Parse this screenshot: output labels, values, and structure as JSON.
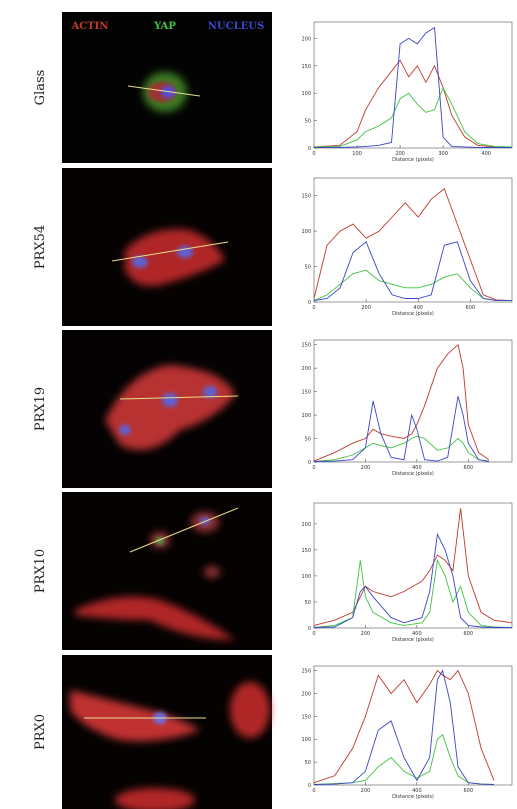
{
  "chart_data": [
    {
      "type": "line",
      "label": "Glass",
      "xlabel": "Distance (pixels)",
      "x": [
        0,
        60,
        100,
        120,
        150,
        180,
        200,
        220,
        240,
        260,
        280,
        300,
        320,
        350,
        380,
        420,
        460
      ],
      "xlim": [
        0,
        460
      ],
      "xticks": [
        0,
        100,
        200,
        300,
        400
      ],
      "ylim": [
        0,
        230
      ],
      "yticks": [
        0,
        50,
        100,
        150,
        200
      ],
      "series": [
        {
          "name": "ACTIN",
          "color": "#c0392b",
          "values": [
            2,
            5,
            30,
            70,
            110,
            140,
            160,
            130,
            150,
            120,
            150,
            110,
            60,
            20,
            5,
            2,
            2
          ]
        },
        {
          "name": "YAP",
          "color": "#3ec43e",
          "values": [
            2,
            3,
            15,
            30,
            40,
            55,
            90,
            100,
            80,
            65,
            70,
            110,
            80,
            30,
            8,
            3,
            2
          ]
        },
        {
          "name": "NUCLEUS",
          "color": "#3a46c8",
          "values": [
            1,
            1,
            2,
            3,
            5,
            10,
            190,
            200,
            190,
            210,
            220,
            20,
            3,
            2,
            1,
            1,
            1
          ]
        }
      ]
    },
    {
      "type": "line",
      "label": "PRX54",
      "xlabel": "Distance (pixels)",
      "x": [
        0,
        50,
        100,
        150,
        200,
        250,
        300,
        350,
        400,
        450,
        500,
        550,
        600,
        650,
        700,
        760
      ],
      "xlim": [
        0,
        760
      ],
      "xticks": [
        0,
        200,
        400,
        600
      ],
      "ylim": [
        0,
        175
      ],
      "yticks": [
        0,
        50,
        100,
        150
      ],
      "series": [
        {
          "color": "#c0392b",
          "values": [
            5,
            80,
            100,
            110,
            90,
            100,
            120,
            140,
            120,
            145,
            160,
            110,
            60,
            10,
            3,
            2
          ]
        },
        {
          "color": "#3ec43e",
          "values": [
            2,
            10,
            25,
            40,
            45,
            30,
            25,
            20,
            20,
            25,
            35,
            40,
            20,
            5,
            2,
            2
          ]
        },
        {
          "color": "#3a46c8",
          "values": [
            2,
            5,
            20,
            70,
            85,
            40,
            10,
            5,
            5,
            10,
            80,
            85,
            30,
            5,
            2,
            2
          ]
        }
      ]
    },
    {
      "type": "line",
      "label": "PRX19",
      "xlabel": "Distance (pixels)",
      "x": [
        0,
        80,
        150,
        200,
        230,
        260,
        300,
        350,
        380,
        400,
        430,
        480,
        520,
        560,
        580,
        600,
        640,
        680
      ],
      "xlim": [
        0,
        770
      ],
      "xticks": [
        0,
        200,
        400,
        600
      ],
      "ylim": [
        0,
        260
      ],
      "yticks": [
        0,
        50,
        100,
        150,
        200,
        250
      ],
      "series": [
        {
          "color": "#c0392b",
          "values": [
            2,
            20,
            40,
            50,
            70,
            60,
            55,
            50,
            60,
            80,
            120,
            200,
            230,
            250,
            200,
            80,
            20,
            5
          ]
        },
        {
          "color": "#3ec43e",
          "values": [
            1,
            5,
            15,
            30,
            40,
            35,
            30,
            40,
            50,
            55,
            50,
            25,
            30,
            50,
            40,
            20,
            5,
            2
          ]
        },
        {
          "color": "#3a46c8",
          "values": [
            1,
            2,
            5,
            30,
            130,
            60,
            10,
            5,
            100,
            70,
            5,
            2,
            10,
            140,
            100,
            40,
            5,
            1
          ]
        }
      ]
    },
    {
      "type": "line",
      "label": "PRX10",
      "xlabel": "Distance (pixels)",
      "x": [
        0,
        80,
        150,
        180,
        200,
        230,
        300,
        350,
        420,
        450,
        480,
        510,
        540,
        570,
        600,
        650,
        700,
        770
      ],
      "xlim": [
        0,
        770
      ],
      "xticks": [
        0,
        200,
        400,
        600
      ],
      "ylim": [
        0,
        240
      ],
      "yticks": [
        0,
        50,
        100,
        150,
        200
      ],
      "series": [
        {
          "color": "#c0392b",
          "values": [
            5,
            15,
            30,
            60,
            80,
            70,
            60,
            70,
            90,
            110,
            140,
            130,
            110,
            230,
            100,
            30,
            15,
            10
          ]
        },
        {
          "color": "#3ec43e",
          "values": [
            1,
            5,
            20,
            130,
            60,
            30,
            10,
            5,
            10,
            30,
            130,
            100,
            50,
            80,
            30,
            5,
            2,
            1
          ]
        },
        {
          "color": "#3a46c8",
          "values": [
            1,
            2,
            20,
            70,
            80,
            60,
            20,
            10,
            20,
            70,
            180,
            150,
            100,
            20,
            5,
            2,
            1,
            1
          ]
        }
      ]
    },
    {
      "type": "line",
      "label": "PRX0",
      "xlabel": "Distance (pixels)",
      "x": [
        0,
        80,
        150,
        200,
        250,
        300,
        350,
        400,
        450,
        480,
        500,
        530,
        560,
        600,
        650,
        700
      ],
      "xlim": [
        0,
        770
      ],
      "xticks": [
        0,
        200,
        400,
        600
      ],
      "ylim": [
        0,
        260
      ],
      "yticks": [
        0,
        50,
        100,
        150,
        200,
        250
      ],
      "series": [
        {
          "color": "#c0392b",
          "values": [
            5,
            20,
            80,
            150,
            240,
            200,
            230,
            180,
            220,
            250,
            240,
            230,
            250,
            200,
            80,
            10
          ]
        },
        {
          "color": "#3ec43e",
          "values": [
            1,
            3,
            5,
            10,
            40,
            60,
            30,
            15,
            30,
            100,
            110,
            60,
            20,
            5,
            2,
            1
          ]
        },
        {
          "color": "#3a46c8",
          "values": [
            1,
            2,
            5,
            30,
            120,
            140,
            60,
            10,
            60,
            230,
            250,
            180,
            40,
            5,
            2,
            1
          ]
        }
      ]
    }
  ]
}
